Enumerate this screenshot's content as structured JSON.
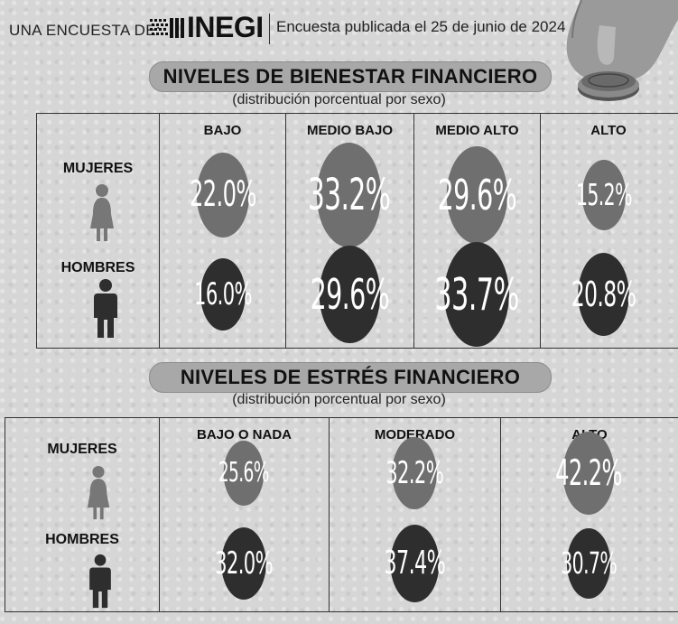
{
  "header": {
    "prefix": "UNA ENCUESTA DE:",
    "org": "INEGI",
    "published": "Encuesta publicada el 25 de junio de 2024"
  },
  "colors": {
    "mujeres": "#6f6f6f",
    "hombres": "#2e2e2e",
    "title_band": "#a8a8a8"
  },
  "chart_data": [
    {
      "type": "table",
      "title": "NIVELES DE BIENESTAR FINANCIERO",
      "subtitle": "(distribución porcentual por sexo)",
      "categories": [
        "BAJO",
        "MEDIO BAJO",
        "MEDIO ALTO",
        "ALTO"
      ],
      "series": [
        {
          "name": "MUJERES",
          "values": [
            22.0,
            33.2,
            29.6,
            15.2
          ],
          "labels": [
            "22.0%",
            "33.2%",
            "29.6%",
            "15.2%"
          ]
        },
        {
          "name": "HOMBRES",
          "values": [
            16.0,
            29.6,
            33.7,
            20.8
          ],
          "labels": [
            "16.0%",
            "29.6%",
            "33.7%",
            "20.8%"
          ]
        }
      ]
    },
    {
      "type": "table",
      "title": "NIVELES DE ESTRÉS FINANCIERO",
      "subtitle": "(distribución porcentual por sexo)",
      "categories": [
        "BAJO O NADA",
        "MODERADO",
        "ALTO"
      ],
      "series": [
        {
          "name": "MUJERES",
          "values": [
            25.6,
            32.2,
            42.2
          ],
          "labels": [
            "25.6%",
            "32.2%",
            "42.2%"
          ]
        },
        {
          "name": "HOMBRES",
          "values": [
            32.0,
            37.4,
            30.7
          ],
          "labels": [
            "32.0%",
            "37.4%",
            "30.7%"
          ]
        }
      ]
    }
  ]
}
